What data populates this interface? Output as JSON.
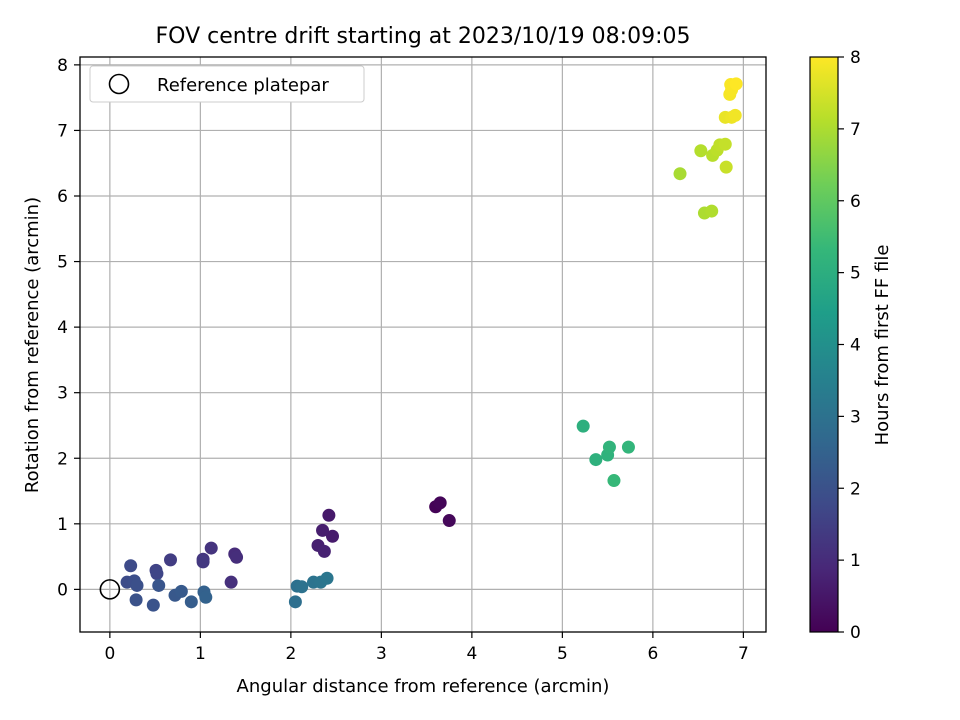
{
  "chart_data": {
    "type": "scatter",
    "title": "FOV centre drift starting at 2023/10/19 08:09:05",
    "xlabel": "Angular distance from reference (arcmin)",
    "ylabel": "Rotation from reference (arcmin)",
    "xlim": [
      -0.33,
      7.25
    ],
    "ylim": [
      -0.65,
      8.12
    ],
    "xticks": [
      0,
      1,
      2,
      3,
      4,
      5,
      6,
      7
    ],
    "yticks": [
      0,
      1,
      2,
      3,
      4,
      5,
      6,
      7,
      8
    ],
    "grid": true,
    "legend": {
      "location": "upper-left",
      "entries": [
        "Reference platepar"
      ]
    },
    "reference_point": {
      "x": 0,
      "y": 0
    },
    "colorbar": {
      "label": "Hours from first FF file",
      "range": [
        0,
        8
      ],
      "ticks": [
        0,
        1,
        2,
        3,
        4,
        5,
        6,
        7,
        8
      ],
      "colormap": "viridis",
      "colors": [
        "#440154",
        "#482878",
        "#3e4a89",
        "#31688e",
        "#26828e",
        "#1f9e89",
        "#35b779",
        "#6ece58",
        "#b5de2b",
        "#fde725"
      ]
    },
    "points": [
      {
        "x": 3.6,
        "y": 1.26,
        "hours": 0.05
      },
      {
        "x": 3.65,
        "y": 1.32,
        "hours": 0.1
      },
      {
        "x": 3.75,
        "y": 1.05,
        "hours": 0.15
      },
      {
        "x": 2.42,
        "y": 1.13,
        "hours": 0.55
      },
      {
        "x": 2.46,
        "y": 0.81,
        "hours": 0.6
      },
      {
        "x": 2.35,
        "y": 0.9,
        "hours": 0.65
      },
      {
        "x": 2.3,
        "y": 0.67,
        "hours": 0.7
      },
      {
        "x": 2.37,
        "y": 0.58,
        "hours": 0.75
      },
      {
        "x": 1.38,
        "y": 0.54,
        "hours": 1.0
      },
      {
        "x": 1.4,
        "y": 0.49,
        "hours": 1.05
      },
      {
        "x": 1.34,
        "y": 0.11,
        "hours": 1.1
      },
      {
        "x": 1.12,
        "y": 0.63,
        "hours": 1.2
      },
      {
        "x": 1.03,
        "y": 0.46,
        "hours": 1.25
      },
      {
        "x": 1.03,
        "y": 0.42,
        "hours": 1.3
      },
      {
        "x": 0.67,
        "y": 0.45,
        "hours": 1.45
      },
      {
        "x": 0.51,
        "y": 0.29,
        "hours": 1.6
      },
      {
        "x": 0.52,
        "y": 0.24,
        "hours": 1.65
      },
      {
        "x": 0.23,
        "y": 0.36,
        "hours": 1.8
      },
      {
        "x": 0.19,
        "y": 0.11,
        "hours": 1.85
      },
      {
        "x": 0.27,
        "y": 0.13,
        "hours": 1.9
      },
      {
        "x": 0.3,
        "y": 0.06,
        "hours": 1.95
      },
      {
        "x": 0.29,
        "y": -0.16,
        "hours": 2.0
      },
      {
        "x": 0.48,
        "y": -0.24,
        "hours": 2.05
      },
      {
        "x": 0.54,
        "y": 0.06,
        "hours": 2.1
      },
      {
        "x": 0.72,
        "y": -0.09,
        "hours": 2.2
      },
      {
        "x": 0.79,
        "y": -0.03,
        "hours": 2.25
      },
      {
        "x": 0.9,
        "y": -0.19,
        "hours": 2.35
      },
      {
        "x": 1.04,
        "y": -0.04,
        "hours": 2.45
      },
      {
        "x": 1.06,
        "y": -0.12,
        "hours": 2.5
      },
      {
        "x": 2.05,
        "y": -0.19,
        "hours": 2.9
      },
      {
        "x": 2.07,
        "y": 0.05,
        "hours": 2.95
      },
      {
        "x": 2.12,
        "y": 0.04,
        "hours": 3.0
      },
      {
        "x": 2.25,
        "y": 0.11,
        "hours": 3.05
      },
      {
        "x": 2.33,
        "y": 0.11,
        "hours": 3.1
      },
      {
        "x": 2.4,
        "y": 0.17,
        "hours": 3.15
      },
      {
        "x": 5.23,
        "y": 2.49,
        "hours": 5.05
      },
      {
        "x": 5.37,
        "y": 1.98,
        "hours": 5.1
      },
      {
        "x": 5.5,
        "y": 2.05,
        "hours": 5.15
      },
      {
        "x": 5.52,
        "y": 2.17,
        "hours": 5.2
      },
      {
        "x": 5.73,
        "y": 2.17,
        "hours": 5.25
      },
      {
        "x": 5.57,
        "y": 1.66,
        "hours": 5.35
      },
      {
        "x": 6.3,
        "y": 6.34,
        "hours": 6.95
      },
      {
        "x": 6.57,
        "y": 5.74,
        "hours": 7.0
      },
      {
        "x": 6.65,
        "y": 5.77,
        "hours": 7.05
      },
      {
        "x": 6.53,
        "y": 6.69,
        "hours": 7.1
      },
      {
        "x": 6.66,
        "y": 6.62,
        "hours": 7.15
      },
      {
        "x": 6.71,
        "y": 6.7,
        "hours": 7.2
      },
      {
        "x": 6.74,
        "y": 6.78,
        "hours": 7.25
      },
      {
        "x": 6.8,
        "y": 6.79,
        "hours": 7.3
      },
      {
        "x": 6.81,
        "y": 6.44,
        "hours": 7.35
      },
      {
        "x": 6.8,
        "y": 7.2,
        "hours": 7.75
      },
      {
        "x": 6.87,
        "y": 7.2,
        "hours": 7.8
      },
      {
        "x": 6.91,
        "y": 7.23,
        "hours": 7.85
      },
      {
        "x": 6.85,
        "y": 7.55,
        "hours": 7.9
      },
      {
        "x": 6.87,
        "y": 7.62,
        "hours": 7.92
      },
      {
        "x": 6.86,
        "y": 7.7,
        "hours": 7.95
      },
      {
        "x": 6.92,
        "y": 7.71,
        "hours": 8.0
      }
    ]
  }
}
